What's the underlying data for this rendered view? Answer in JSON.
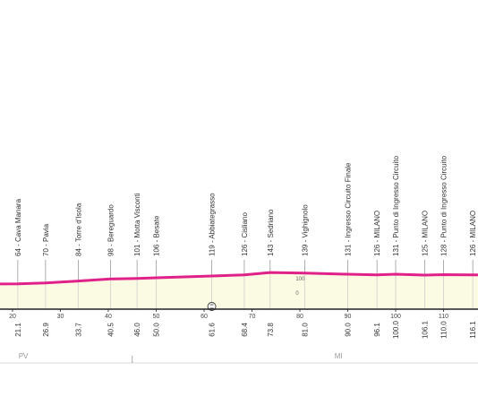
{
  "chart_data": {
    "type": "area",
    "colors": {
      "line": "#e0218a",
      "fill": "#fbfbe3",
      "axis": "#222222",
      "grid": "#bbbbbb"
    },
    "x_ticks": [
      20,
      30,
      40,
      50,
      60,
      70,
      80,
      90,
      100,
      110
    ],
    "x_tick_labels": [
      "20",
      "30",
      "40",
      "50",
      "60",
      "70",
      "80",
      "90",
      "100",
      "110"
    ],
    "elevation_ticks": [
      {
        "value": 100,
        "label": "100"
      },
      {
        "value": 0,
        "label": "0"
      }
    ],
    "profile": [
      {
        "km": 12,
        "alt": 63
      },
      {
        "km": 21.1,
        "alt": 64
      },
      {
        "km": 26.9,
        "alt": 70
      },
      {
        "km": 33.7,
        "alt": 84
      },
      {
        "km": 40.5,
        "alt": 98
      },
      {
        "km": 46.0,
        "alt": 101
      },
      {
        "km": 50.0,
        "alt": 106
      },
      {
        "km": 61.6,
        "alt": 119
      },
      {
        "km": 68.4,
        "alt": 126
      },
      {
        "km": 73.8,
        "alt": 143
      },
      {
        "km": 81.0,
        "alt": 139
      },
      {
        "km": 90.0,
        "alt": 131
      },
      {
        "km": 96.1,
        "alt": 126
      },
      {
        "km": 100.0,
        "alt": 131
      },
      {
        "km": 106.1,
        "alt": 125
      },
      {
        "km": 110.0,
        "alt": 128
      },
      {
        "km": 116.1,
        "alt": 126
      },
      {
        "km": 120,
        "alt": 127
      }
    ],
    "locations": [
      {
        "km": 21.1,
        "km_label": "21.1",
        "label": "64 - Cava Manara"
      },
      {
        "km": 26.9,
        "km_label": "26.9",
        "label": "70 - Pavia"
      },
      {
        "km": 33.7,
        "km_label": "33.7",
        "label": "84 - Torre d'Isola"
      },
      {
        "km": 40.5,
        "km_label": "40.5",
        "label": "98 - Bereguardo"
      },
      {
        "km": 46.0,
        "km_label": "46.0",
        "label": "101 - Motta Visconti"
      },
      {
        "km": 50.0,
        "km_label": "50.0",
        "label": "106 - Besate"
      },
      {
        "km": 61.6,
        "km_label": "61.6",
        "label": "119 - Abbiategrasso",
        "icon": "sprint-icon"
      },
      {
        "km": 68.4,
        "km_label": "68.4",
        "label": "126 - Cisliano"
      },
      {
        "km": 73.8,
        "km_label": "73.8",
        "label": "143 - Sedriano"
      },
      {
        "km": 81.0,
        "km_label": "81.0",
        "label": "139 - Vighignolo"
      },
      {
        "km": 90.0,
        "km_label": "90.0",
        "label": "131 - Ingresso Circuito Finale"
      },
      {
        "km": 96.1,
        "km_label": "96.1",
        "label": "126 - MILANO"
      },
      {
        "km": 100.0,
        "km_label": "100.0",
        "label": "131 - Punto di Ingresso Circuito"
      },
      {
        "km": 106.1,
        "km_label": "106.1",
        "label": "125 - MILANO"
      },
      {
        "km": 110.0,
        "km_label": "110.0",
        "label": "128 - Punto di Ingresso Circuito"
      },
      {
        "km": 116.1,
        "km_label": "116.1",
        "label": "126 - MILANO"
      }
    ],
    "provinces": [
      {
        "label": "PV",
        "km": 22
      },
      {
        "label": "MI",
        "km": 88
      }
    ],
    "province_boundary_km": 45
  }
}
